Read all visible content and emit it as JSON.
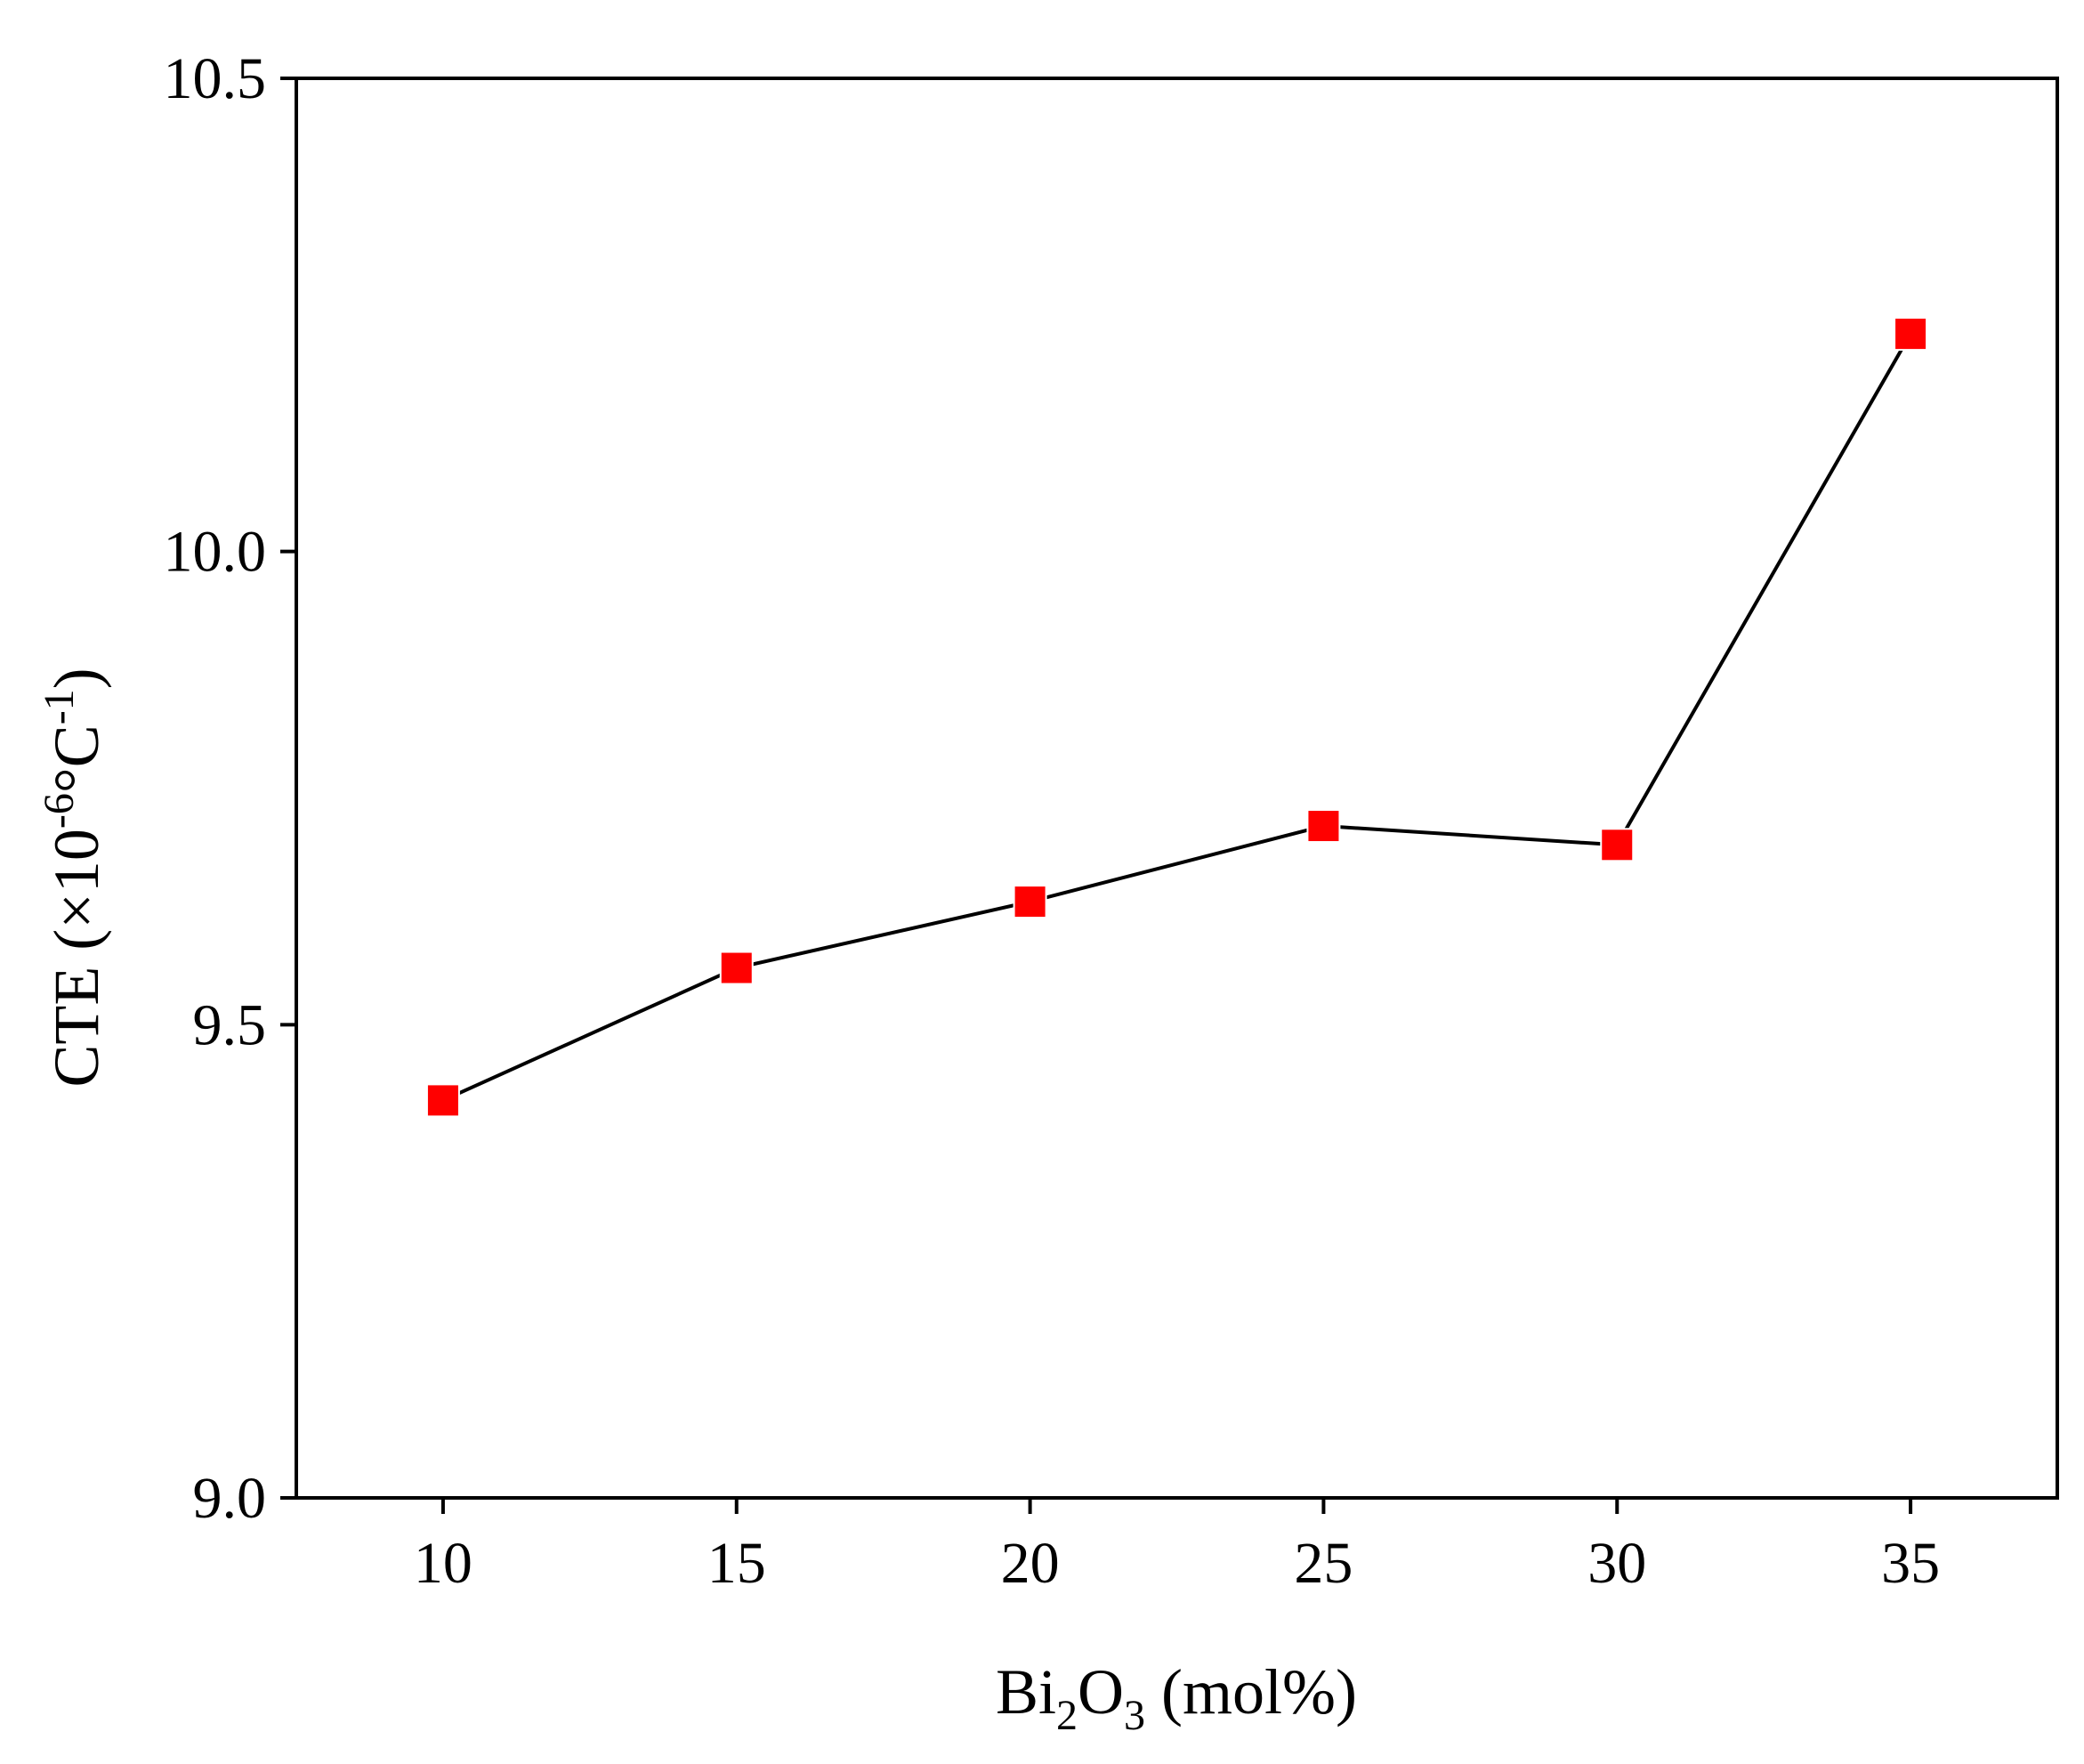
{
  "chart_data": {
    "type": "line",
    "xlabel": {
      "main": "Bi",
      "sub1": "2",
      "mid": "O",
      "sub2": "3",
      "tail": " (mol%)"
    },
    "ylabel": {
      "main": "CTE (×10",
      "sup1": "-6",
      "mid": "°C",
      "sup2": "-1",
      "tail": ")"
    },
    "x_ticks": [
      "10",
      "15",
      "20",
      "25",
      "30",
      "35"
    ],
    "y_ticks": [
      "9.0",
      "9.5",
      "10.0",
      "10.5"
    ],
    "xlim": [
      7.5,
      37.5
    ],
    "ylim": [
      9.0,
      10.5
    ],
    "series": [
      {
        "x": [
          10,
          15,
          20,
          25,
          30,
          35
        ],
        "values": [
          9.42,
          9.56,
          9.63,
          9.71,
          9.69,
          10.23
        ],
        "marker": "square",
        "marker_color": "#ff0000",
        "line_color": "#000000"
      }
    ],
    "grid": false,
    "legend": "none"
  }
}
